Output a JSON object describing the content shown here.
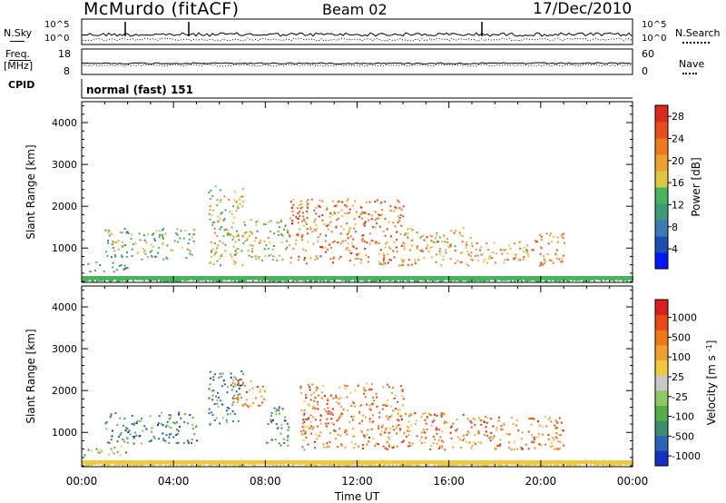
{
  "header": {
    "station": "McMurdo (fitACF)",
    "beam": "Beam 02",
    "date": "17/Dec/2010",
    "cpid_label": "CPID",
    "cpid_value": "normal (fast) 151"
  },
  "top_panels": {
    "nsky_label": "N.Sky",
    "nsky_ticks": [
      "10^5",
      "10^0"
    ],
    "nsearch_label": "N.Search",
    "nsearch_ticks": [
      "10^5",
      "10^0"
    ],
    "freq_label": "Freq.",
    "freq_unit": "[MHz]",
    "freq_ticks": [
      18,
      8
    ],
    "nave_label": "Nave",
    "nave_ticks": [
      60,
      0
    ]
  },
  "chart_data": [
    {
      "type": "heatmap",
      "name": "power",
      "ylabel": "Slant Range [km]",
      "ylim": [
        180,
        4500
      ],
      "yticks": [
        1000,
        2000,
        3000,
        4000
      ],
      "xlim": [
        0,
        24
      ],
      "xticks": [
        "00:00",
        "04:00",
        "08:00",
        "12:00",
        "16:00",
        "20:00",
        "00:00"
      ],
      "colorbar": {
        "label": "Power [dB]",
        "tick_labels": [
          "4",
          "8",
          "12",
          "16",
          "20",
          "24",
          "28"
        ],
        "colors": [
          "#0018ff",
          "#1e50b4",
          "#3c7cb4",
          "#3c9a78",
          "#46b45a",
          "#dcc83c",
          "#f0a02c",
          "#f0781e",
          "#e84e1a",
          "#dc2a1a"
        ]
      },
      "echo_regions": [
        {
          "t0": 0.0,
          "t1": 2.0,
          "r0": 450,
          "r1": 700,
          "level": 3
        },
        {
          "t0": 1.0,
          "t1": 5.0,
          "r0": 750,
          "r1": 1500,
          "level": 4
        },
        {
          "t0": 5.5,
          "t1": 7.0,
          "r0": 600,
          "r1": 2500,
          "level": 5
        },
        {
          "t0": 7.0,
          "t1": 9.0,
          "r0": 700,
          "r1": 1700,
          "level": 5
        },
        {
          "t0": 9.0,
          "t1": 14.0,
          "r0": 600,
          "r1": 2200,
          "level": 7
        },
        {
          "t0": 14.0,
          "t1": 17.0,
          "r0": 600,
          "r1": 1500,
          "level": 6
        },
        {
          "t0": 17.0,
          "t1": 19.5,
          "r0": 650,
          "r1": 1200,
          "level": 6
        },
        {
          "t0": 19.5,
          "t1": 21.0,
          "r0": 600,
          "r1": 1400,
          "level": 7
        }
      ]
    },
    {
      "type": "heatmap",
      "name": "velocity",
      "ylabel": "Slant Range [km]",
      "ylim": [
        180,
        4500
      ],
      "yticks": [
        1000,
        2000,
        3000,
        4000
      ],
      "xlim": [
        0,
        24
      ],
      "xticks": [
        "00:00",
        "04:00",
        "08:00",
        "12:00",
        "16:00",
        "20:00",
        "00:00"
      ],
      "xlabel": "Time UT",
      "colorbar": {
        "label": "Velocity",
        "unit": "[m s",
        "unit_exp": "-1",
        "unit_close": "]",
        "tick_labels": [
          "1000",
          "500",
          "100",
          "25",
          "-25",
          "-100",
          "-500",
          "-1000"
        ],
        "colors": [
          "#1430c8",
          "#2c62b8",
          "#3c8c6e",
          "#50b046",
          "#8cc864",
          "#c8c8c8",
          "#f0c83c",
          "#f0a02c",
          "#f07814",
          "#e84a14",
          "#dc1e1e"
        ]
      },
      "echo_regions": [
        {
          "t0": 0.0,
          "t1": 2.0,
          "r0": 450,
          "r1": 700,
          "level": 4
        },
        {
          "t0": 1.0,
          "t1": 5.0,
          "r0": 750,
          "r1": 1500,
          "level": 2
        },
        {
          "t0": 5.5,
          "t1": 7.0,
          "r0": 1200,
          "r1": 2500,
          "level": 2
        },
        {
          "t0": 6.5,
          "t1": 8.0,
          "r0": 1600,
          "r1": 2300,
          "level": 8
        },
        {
          "t0": 8.0,
          "t1": 9.0,
          "r0": 700,
          "r1": 1700,
          "level": 2
        },
        {
          "t0": 9.5,
          "t1": 14.0,
          "r0": 600,
          "r1": 2200,
          "level": 8
        },
        {
          "t0": 14.0,
          "t1": 17.0,
          "r0": 600,
          "r1": 1500,
          "level": 8
        },
        {
          "t0": 17.0,
          "t1": 21.0,
          "r0": 600,
          "r1": 1400,
          "level": 8
        }
      ]
    }
  ]
}
